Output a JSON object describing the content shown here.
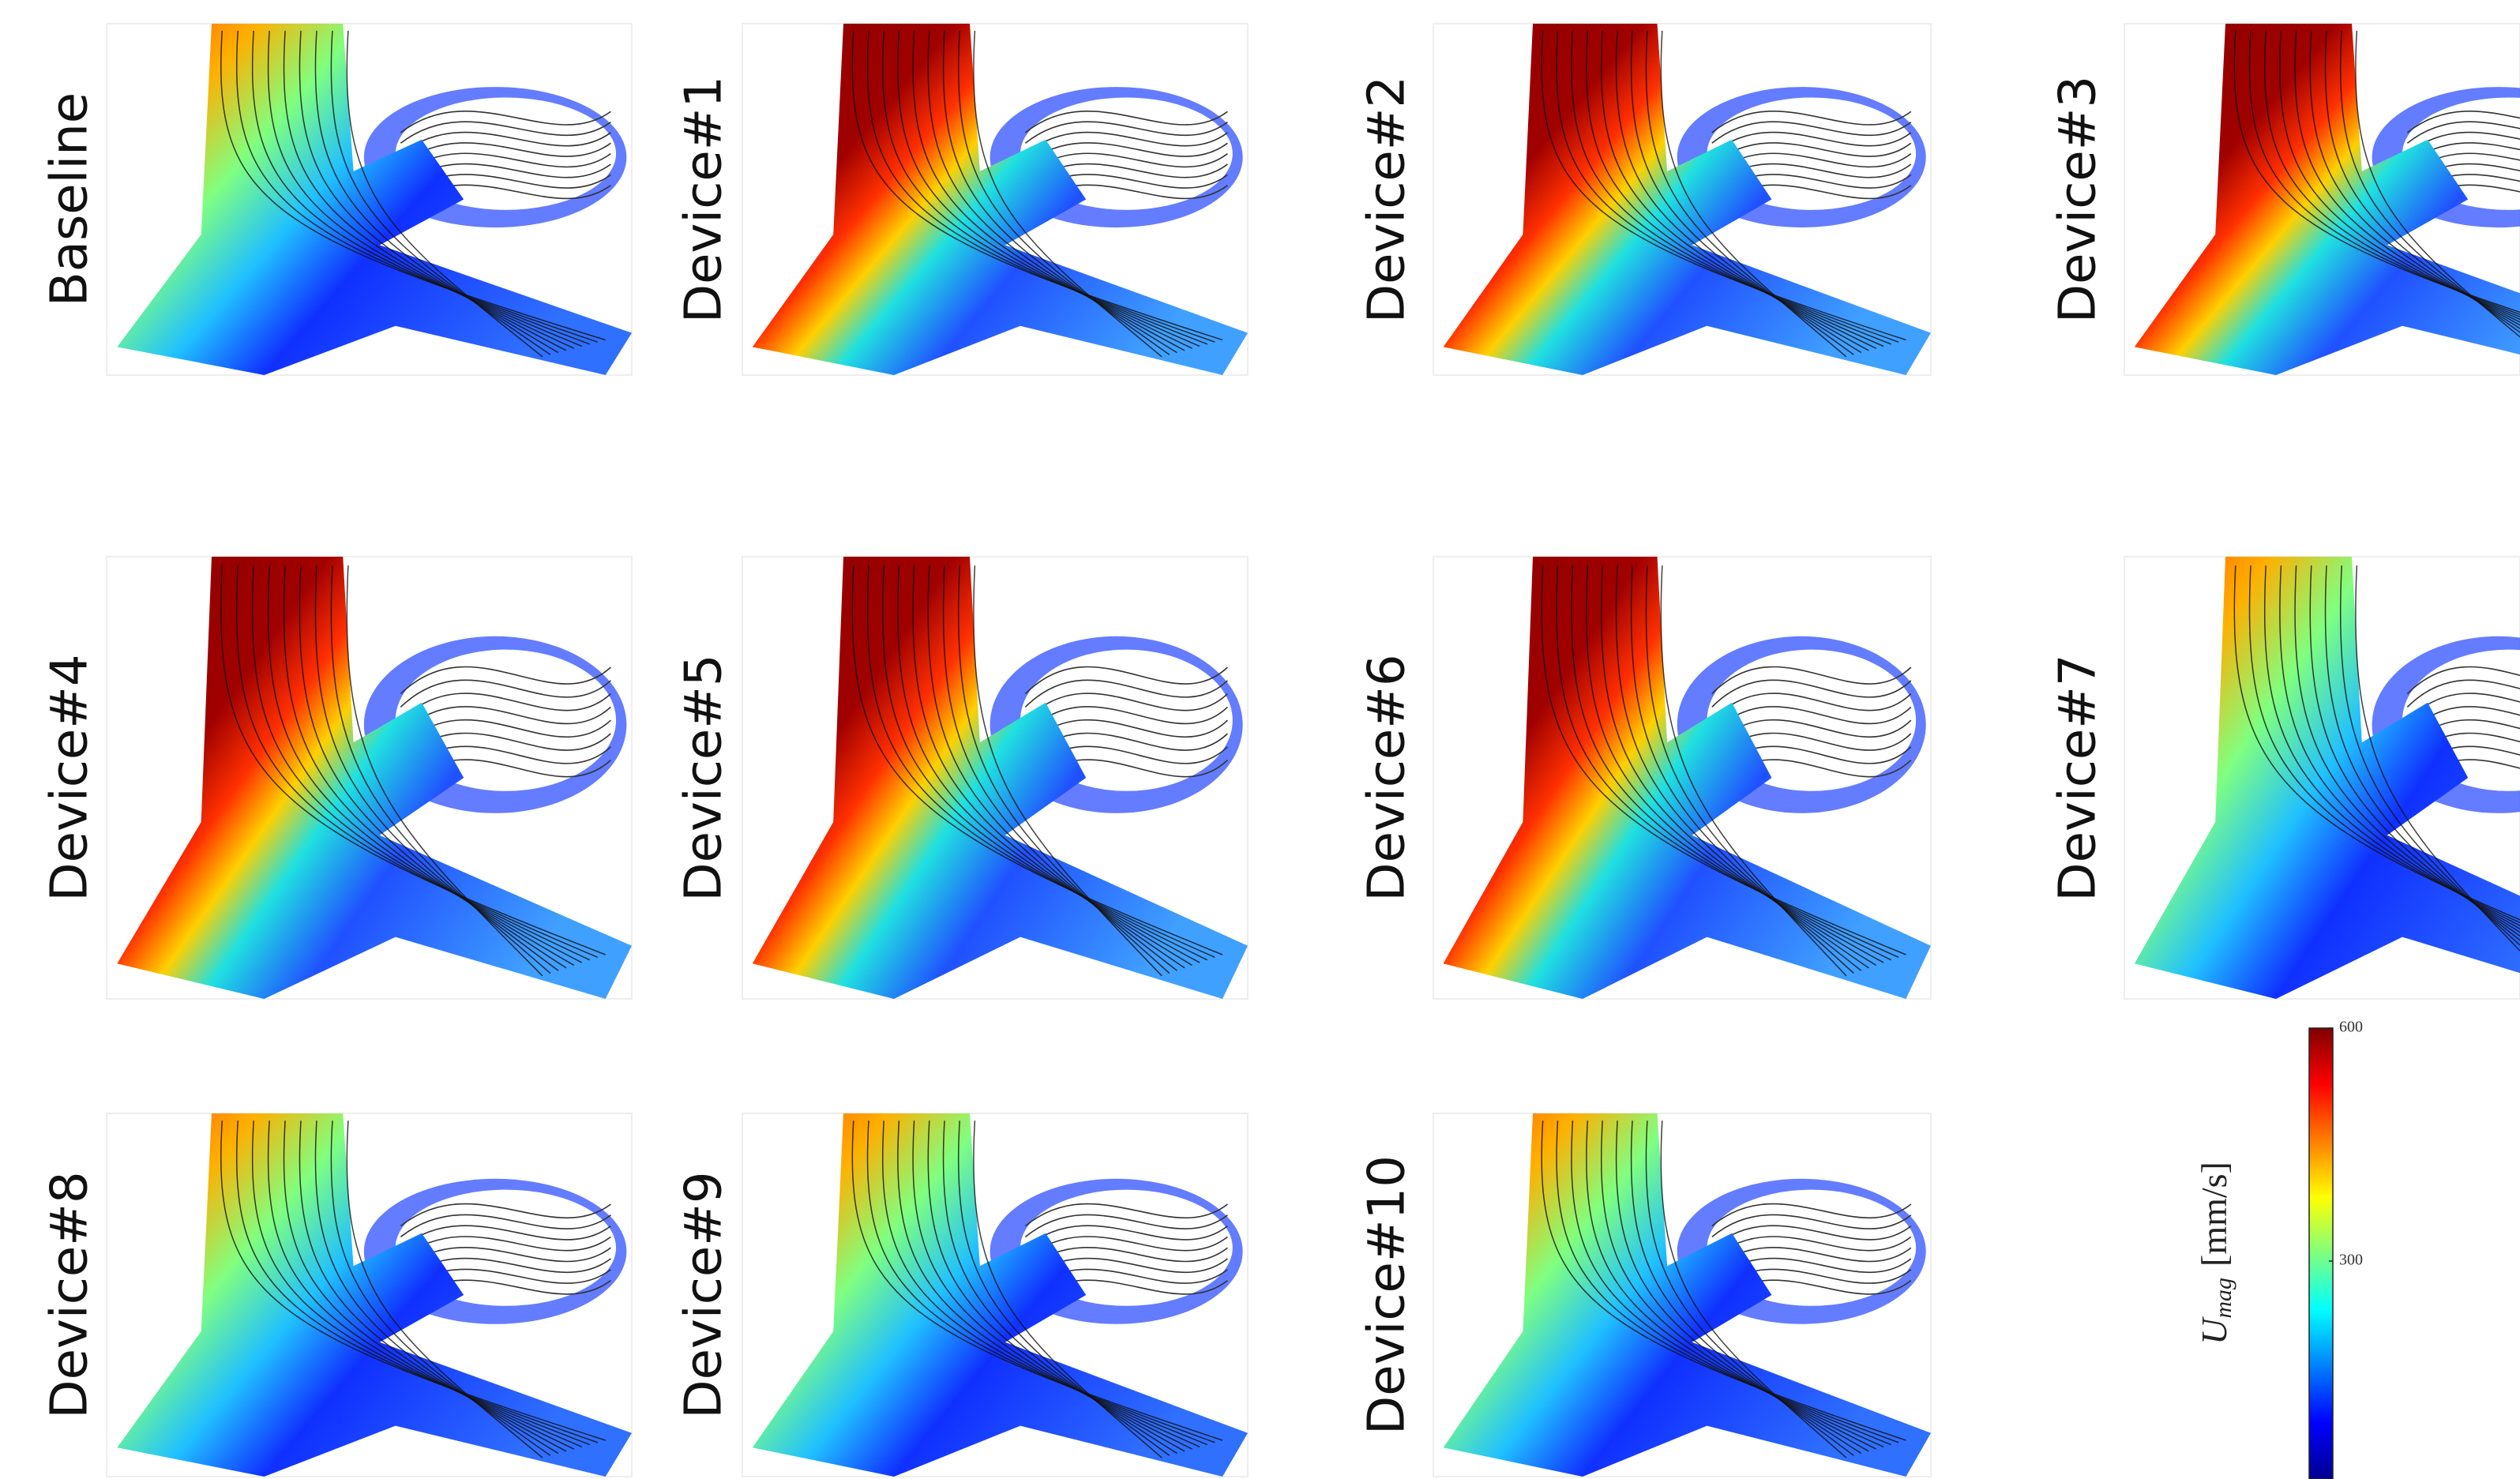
{
  "panels": [
    {
      "label": "Baseline"
    },
    {
      "label": "Device#1"
    },
    {
      "label": "Device#2"
    },
    {
      "label": "Device#3"
    },
    {
      "label": "Device#4"
    },
    {
      "label": "Device#5"
    },
    {
      "label": "Device#6"
    },
    {
      "label": "Device#7"
    },
    {
      "label": "Device#8"
    },
    {
      "label": "Device#9"
    },
    {
      "label": "Device#10"
    }
  ],
  "colorbar": {
    "symbol": "U",
    "subscript": "mag",
    "unit": "[mm/s]",
    "lim": [
      0,
      600
    ],
    "ticks": [
      300,
      600
    ]
  }
}
